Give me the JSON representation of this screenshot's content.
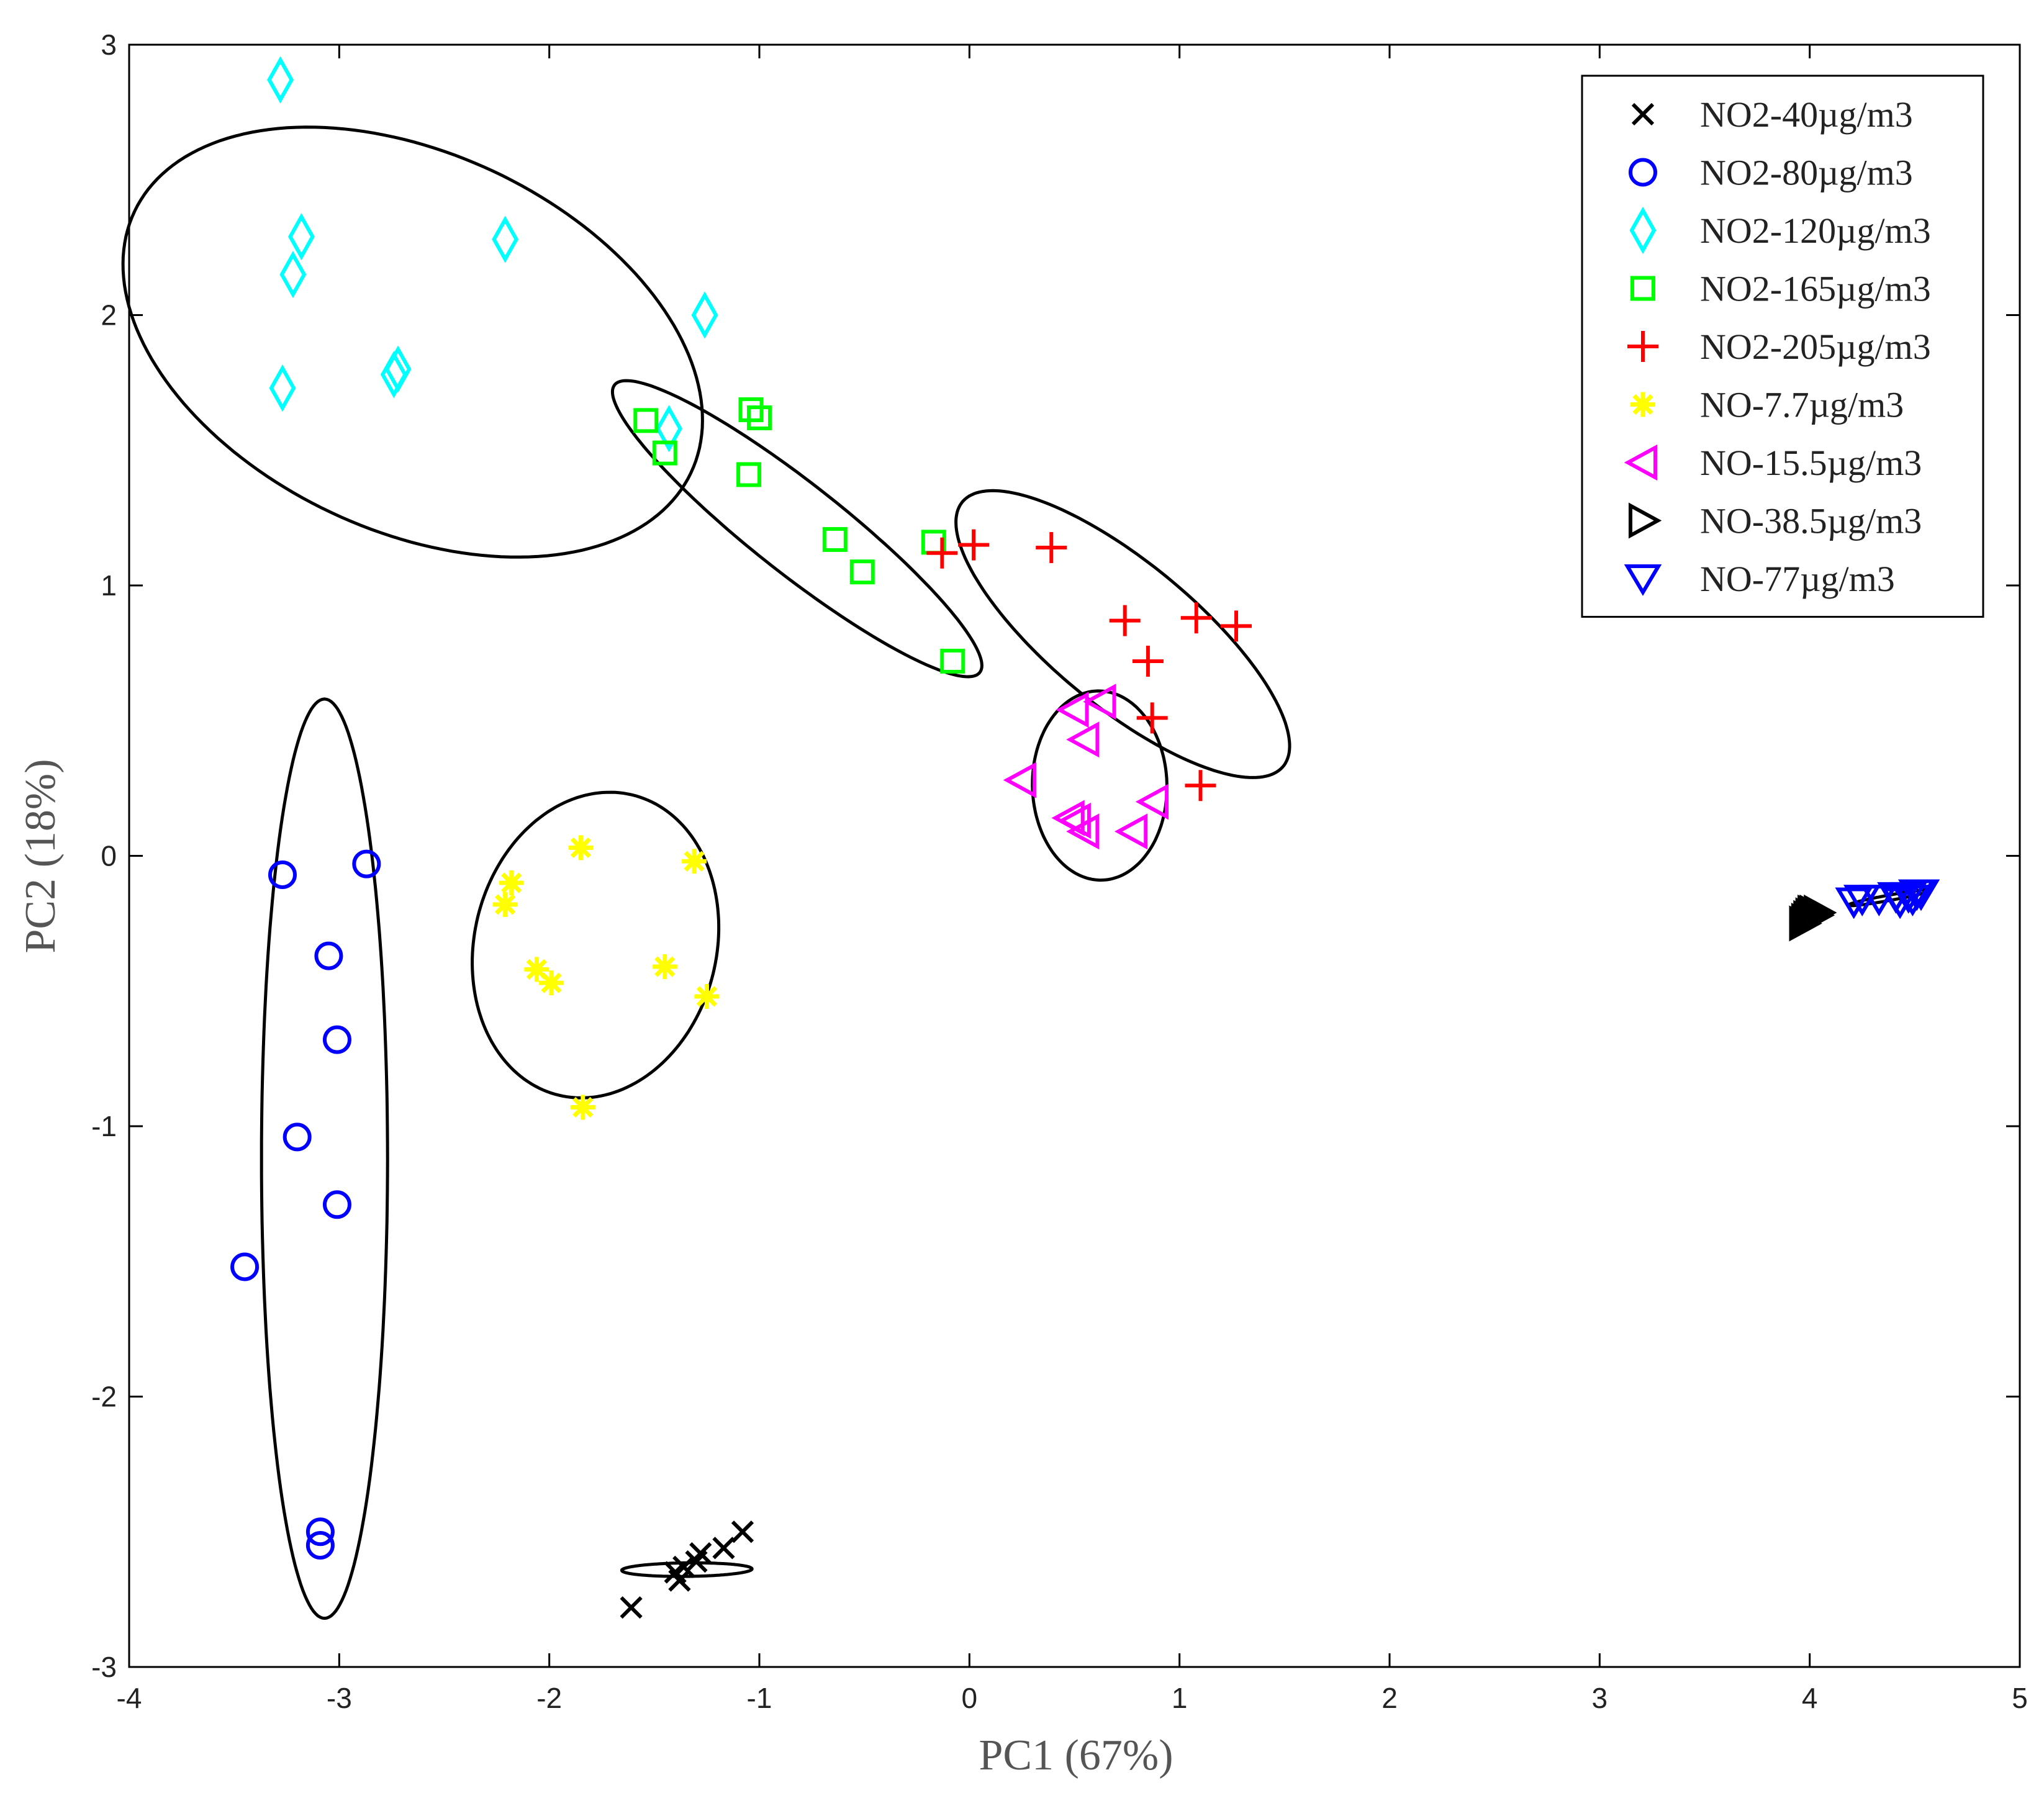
{
  "chart_data": {
    "type": "scatter",
    "title": "",
    "xlabel": "PC1 (67%)",
    "ylabel": "PC2 (18%)",
    "xlim": [
      -4,
      5
    ],
    "ylim": [
      -3,
      3
    ],
    "xticks": [
      -4,
      -3,
      -2,
      -1,
      0,
      1,
      2,
      3,
      4,
      5
    ],
    "yticks": [
      -3,
      -2,
      -1,
      0,
      1,
      2,
      3
    ],
    "grid": false,
    "legend_position": "top-right",
    "series": [
      {
        "name": "NO2-40µg/m3",
        "marker": "x",
        "color": "#000000",
        "points": [
          [
            -1.61,
            -2.78
          ],
          [
            -1.4,
            -2.65
          ],
          [
            -1.38,
            -2.68
          ],
          [
            -1.36,
            -2.63
          ],
          [
            -1.3,
            -2.61
          ],
          [
            -1.28,
            -2.58
          ],
          [
            -1.17,
            -2.56
          ],
          [
            -1.08,
            -2.5
          ]
        ],
        "ellipse": {
          "cx": -1.345,
          "cy": -2.64,
          "rx": 0.31,
          "ry": 0.025,
          "angle": 0.5
        }
      },
      {
        "name": "NO2-80µg/m3",
        "marker": "o",
        "color": "#0000ff",
        "points": [
          [
            -3.27,
            -0.07
          ],
          [
            -2.87,
            -0.03
          ],
          [
            -3.05,
            -0.37
          ],
          [
            -3.01,
            -0.68
          ],
          [
            -3.2,
            -1.04
          ],
          [
            -3.01,
            -1.29
          ],
          [
            -3.45,
            -1.52
          ],
          [
            -3.09,
            -2.5
          ],
          [
            -3.09,
            -2.55
          ]
        ],
        "ellipse": {
          "cx": -3.07,
          "cy": -1.12,
          "rx": 1.7,
          "ry": 0.3,
          "angle": 90
        }
      },
      {
        "name": "NO2-120µg/m3",
        "marker": "diamond",
        "color": "#00ffff",
        "points": [
          [
            -3.28,
            2.87
          ],
          [
            -3.18,
            2.29
          ],
          [
            -3.22,
            2.15
          ],
          [
            -3.27,
            1.73
          ],
          [
            -2.74,
            1.78
          ],
          [
            -2.72,
            1.8
          ],
          [
            -2.21,
            2.28
          ],
          [
            -1.26,
            2.0
          ],
          [
            -1.43,
            1.58
          ]
        ],
        "ellipse": {
          "cx": -2.65,
          "cy": 1.9,
          "rx": 1.42,
          "ry": 0.72,
          "angle": -16
        }
      },
      {
        "name": "NO2-165µg/m3",
        "marker": "square",
        "color": "#00ff00",
        "points": [
          [
            -1.54,
            1.61
          ],
          [
            -1.45,
            1.49
          ],
          [
            -1.04,
            1.65
          ],
          [
            -1.0,
            1.62
          ],
          [
            -1.05,
            1.41
          ],
          [
            -0.64,
            1.17
          ],
          [
            -0.51,
            1.05
          ],
          [
            -0.17,
            1.16
          ],
          [
            -0.08,
            0.72
          ]
        ],
        "ellipse": {
          "cx": -0.82,
          "cy": 1.21,
          "rx": 1.02,
          "ry": 0.18,
          "angle": -31
        }
      },
      {
        "name": "NO2-205µg/m3",
        "marker": "+",
        "color": "#ff0000",
        "points": [
          [
            -0.13,
            1.12
          ],
          [
            0.02,
            1.15
          ],
          [
            0.39,
            1.14
          ],
          [
            0.74,
            0.87
          ],
          [
            0.85,
            0.72
          ],
          [
            0.87,
            0.51
          ],
          [
            1.08,
            0.88
          ],
          [
            1.27,
            0.85
          ],
          [
            1.1,
            0.26
          ]
        ],
        "ellipse": {
          "cx": 0.73,
          "cy": 0.82,
          "rx": 0.91,
          "ry": 0.29,
          "angle": -31
        }
      },
      {
        "name": "NO-7.7µg/m3",
        "marker": "*",
        "color": "#ffff00",
        "points": [
          [
            -1.85,
            0.03
          ],
          [
            -1.31,
            -0.02
          ],
          [
            -2.18,
            -0.1
          ],
          [
            -2.21,
            -0.18
          ],
          [
            -2.06,
            -0.42
          ],
          [
            -1.99,
            -0.47
          ],
          [
            -1.45,
            -0.41
          ],
          [
            -1.25,
            -0.52
          ],
          [
            -1.84,
            -0.93
          ]
        ],
        "ellipse": {
          "cx": -1.78,
          "cy": -0.33,
          "rx": 0.61,
          "ry": 0.54,
          "angle": 36
        }
      },
      {
        "name": "NO-15.5µg/m3",
        "marker": "triangle-left",
        "color": "#ff00ff",
        "points": [
          [
            0.5,
            0.54
          ],
          [
            0.63,
            0.57
          ],
          [
            0.55,
            0.43
          ],
          [
            0.25,
            0.28
          ],
          [
            0.48,
            0.14
          ],
          [
            0.51,
            0.13
          ],
          [
            0.55,
            0.09
          ],
          [
            0.78,
            0.09
          ],
          [
            0.88,
            0.2
          ]
        ],
        "ellipse": {
          "cx": 0.62,
          "cy": 0.26,
          "rx": 0.35,
          "ry": 0.32,
          "angle": 95
        }
      },
      {
        "name": "NO-38.5µg/m3",
        "marker": "triangle-right",
        "color": "#000000",
        "points": [
          [
            3.97,
            -0.25
          ],
          [
            3.98,
            -0.24
          ],
          [
            3.99,
            -0.23
          ],
          [
            4.0,
            -0.22
          ],
          [
            4.01,
            -0.21
          ],
          [
            4.02,
            -0.21
          ],
          [
            4.03,
            -0.22
          ],
          [
            4.04,
            -0.21
          ]
        ],
        "ellipse": {
          "cx": 4.0,
          "cy": -0.23,
          "rx": 0.06,
          "ry": 0.008,
          "angle": 25
        }
      },
      {
        "name": "NO-77µg/m3",
        "marker": "triangle-down",
        "color": "#0000ff",
        "points": [
          [
            4.21,
            -0.17
          ],
          [
            4.25,
            -0.16
          ],
          [
            4.33,
            -0.16
          ],
          [
            4.41,
            -0.15
          ],
          [
            4.43,
            -0.17
          ],
          [
            4.47,
            -0.15
          ],
          [
            4.49,
            -0.16
          ],
          [
            4.51,
            -0.14
          ],
          [
            4.53,
            -0.14
          ]
        ],
        "ellipse": {
          "cx": 4.38,
          "cy": -0.155,
          "rx": 0.2,
          "ry": 0.01,
          "angle": 8
        }
      }
    ]
  }
}
